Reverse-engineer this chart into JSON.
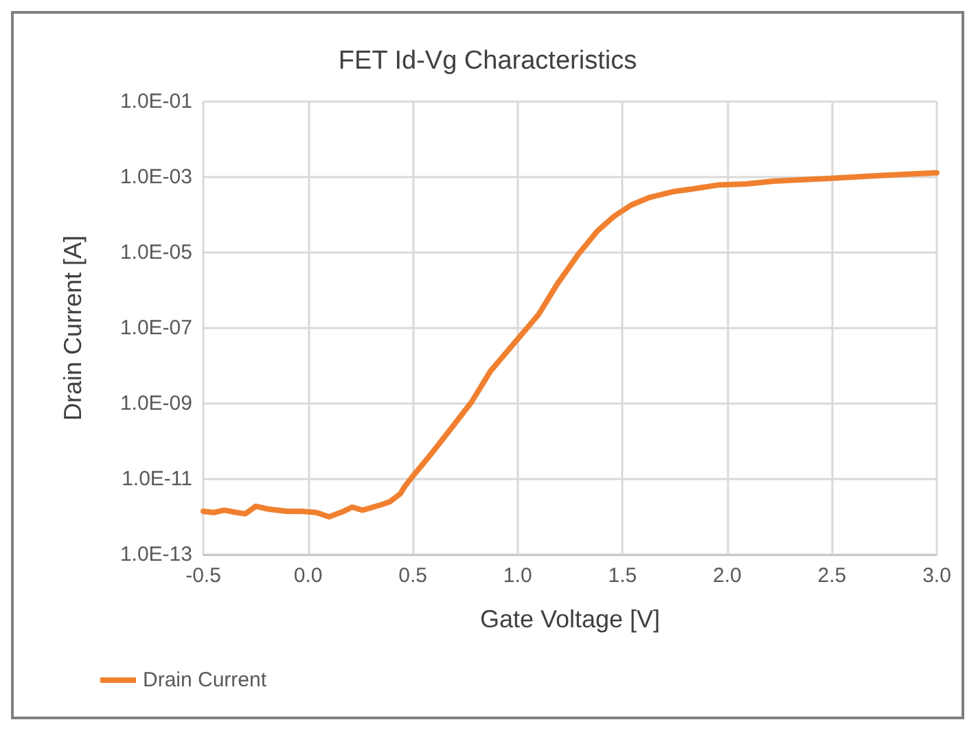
{
  "chart_data": {
    "type": "line",
    "title": "FET Id-Vg Characteristics",
    "xlabel": "Gate Voltage [V]",
    "ylabel": "Drain Current [A]",
    "x": [
      -0.5,
      -0.45,
      -0.4,
      -0.34,
      -0.3,
      -0.25,
      -0.19,
      -0.1,
      -0.03,
      0.04,
      0.1,
      0.17,
      0.21,
      0.26,
      0.35,
      0.39,
      0.44,
      0.46,
      0.5,
      0.58,
      0.68,
      0.78,
      0.87,
      1.0,
      1.1,
      1.19,
      1.29,
      1.38,
      1.46,
      1.54,
      1.63,
      1.74,
      1.83,
      1.96,
      2.09,
      2.22,
      2.35,
      2.47,
      2.6,
      2.73,
      2.86,
      3.0
    ],
    "series": [
      {
        "name": "Drain Current",
        "color": "#f0802f",
        "values": [
          1.4e-12,
          1.3e-12,
          1.5e-12,
          1.3e-12,
          1.2e-12,
          1.9e-12,
          1.6e-12,
          1.4e-12,
          1.4e-12,
          1.3e-12,
          1e-12,
          1.4e-12,
          1.8e-12,
          1.5e-12,
          2.1e-12,
          2.5e-12,
          4.1e-12,
          6.2e-12,
          1.2e-11,
          4.1e-11,
          2.1e-10,
          1.1e-09,
          7.2e-09,
          5.1e-08,
          2.3e-07,
          1.5e-06,
          9.1e-06,
          3.7e-05,
          9.1e-05,
          0.00018,
          0.00029,
          0.00041,
          0.00048,
          0.00062,
          0.00066,
          0.00078,
          0.00085,
          0.00091,
          0.001,
          0.0011,
          0.0012,
          0.0013
        ]
      }
    ],
    "xlim": [
      -0.5,
      3.0
    ],
    "xticks": [
      -0.5,
      {
        "value": 0,
        "label": "0.0"
      },
      0.5,
      {
        "value": 1,
        "label": "1.0"
      },
      1.5,
      {
        "value": 2,
        "label": "2.0"
      },
      2.5,
      {
        "value": 3,
        "label": "3.0"
      }
    ],
    "ylim": [
      1e-13,
      0.1
    ],
    "yticks": [
      {
        "value": 1e-13,
        "label": "1.0E-13"
      },
      {
        "value": 1e-11,
        "label": "1.0E-11"
      },
      {
        "value": 1e-09,
        "label": "1.0E-09"
      },
      {
        "value": 1e-07,
        "label": "1.0E-07"
      },
      {
        "value": 1e-05,
        "label": "1.0E-05"
      },
      {
        "value": 0.001,
        "label": "1.0E-03"
      },
      {
        "value": 0.1,
        "label": "1.0E-01"
      }
    ],
    "log": "y",
    "grid": true,
    "legend": "bottom left",
    "marker": "none",
    "line_style": "solid"
  }
}
